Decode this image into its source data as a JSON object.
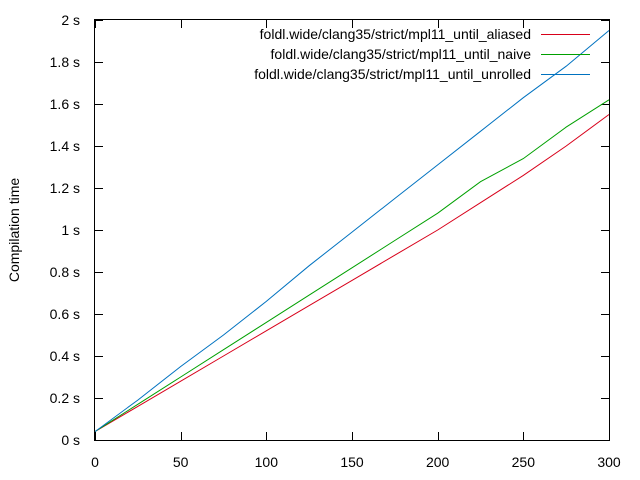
{
  "chart_data": {
    "type": "line",
    "title": "",
    "xlabel": "",
    "ylabel": "Compilation time",
    "xlim": [
      0,
      300
    ],
    "ylim": [
      0,
      2
    ],
    "x_ticks": [
      0,
      50,
      100,
      150,
      200,
      250,
      300
    ],
    "x_tick_labels": [
      "0",
      "50",
      "100",
      "150",
      "200",
      "250",
      "300"
    ],
    "y_ticks": [
      0,
      0.2,
      0.4,
      0.6,
      0.8,
      1,
      1.2,
      1.4,
      1.6,
      1.8,
      2
    ],
    "y_tick_labels": [
      "0 s",
      "0.2 s",
      "0.4 s",
      "0.6 s",
      "0.8 s",
      "1 s",
      "1.2 s",
      "1.4 s",
      "1.6 s",
      "1.8 s",
      "2 s"
    ],
    "grid": false,
    "legend_position": "top-right",
    "x": [
      0,
      25,
      50,
      75,
      100,
      125,
      150,
      175,
      200,
      225,
      250,
      275,
      300
    ],
    "series": [
      {
        "name": "foldl.wide/clang35/strict/mpl11_until_aliased",
        "color": "#d8001a",
        "values": [
          0.04,
          0.16,
          0.28,
          0.4,
          0.52,
          0.64,
          0.76,
          0.88,
          1.0,
          1.13,
          1.26,
          1.4,
          1.55
        ]
      },
      {
        "name": "foldl.wide/clang35/strict/mpl11_until_naive",
        "color": "#00a000",
        "values": [
          0.04,
          0.17,
          0.3,
          0.43,
          0.56,
          0.69,
          0.82,
          0.95,
          1.08,
          1.23,
          1.34,
          1.49,
          1.62
        ]
      },
      {
        "name": "foldl.wide/clang35/strict/mpl11_until_unrolled",
        "color": "#0072c0",
        "values": [
          0.04,
          0.19,
          0.35,
          0.5,
          0.66,
          0.83,
          0.99,
          1.15,
          1.31,
          1.47,
          1.63,
          1.78,
          1.95
        ]
      }
    ]
  }
}
